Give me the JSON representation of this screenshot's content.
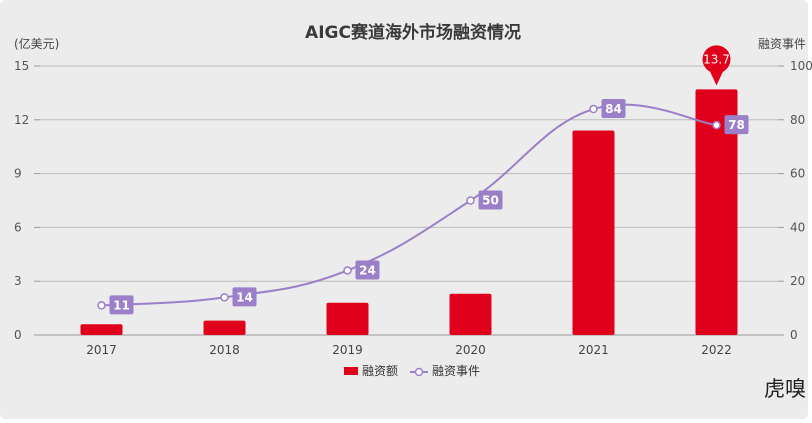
{
  "chart_data": {
    "type": "bar+line",
    "title": "AIGC赛道海外市场融资情况",
    "left_axis_label": "(亿美元)",
    "right_axis_label": "融资事件",
    "categories": [
      "2017",
      "2018",
      "2019",
      "2020",
      "2021",
      "2022"
    ],
    "left_ylim": [
      0,
      15
    ],
    "left_ticks": [
      "0",
      "3",
      "6",
      "9",
      "12",
      "15"
    ],
    "right_ylim": [
      0,
      100
    ],
    "right_ticks": [
      "0",
      "20",
      "40",
      "60",
      "80",
      "100"
    ],
    "series": [
      {
        "name": "融资额",
        "type": "bar",
        "axis": "left",
        "color": "#e0001b",
        "values": [
          0.6,
          0.8,
          1.8,
          2.3,
          11.4,
          13.7
        ]
      },
      {
        "name": "融资事件",
        "type": "line",
        "axis": "right",
        "color": "#9b7fc9",
        "values": [
          11,
          14,
          24,
          50,
          84,
          78
        ]
      }
    ],
    "callout": {
      "text": "13.7",
      "category": "2022",
      "color": "#e0001b"
    },
    "legend": {
      "position": "bottom",
      "items": [
        "融资额",
        "融资事件"
      ]
    },
    "grid": true
  },
  "watermark": "虎嗅"
}
